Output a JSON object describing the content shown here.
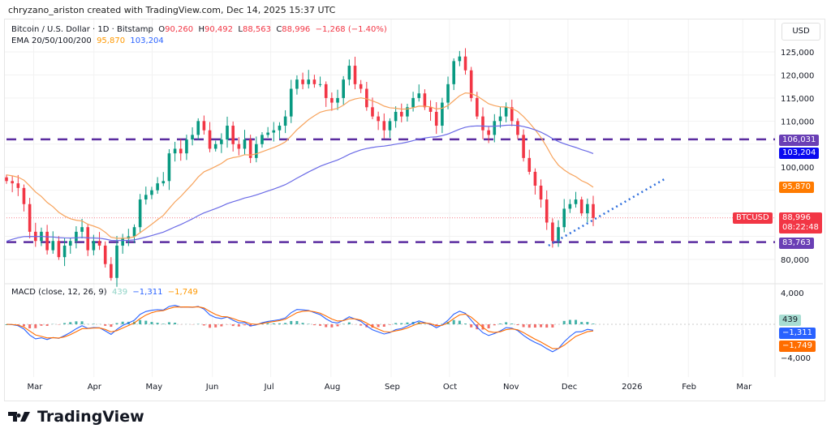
{
  "header": {
    "credit": "chryzano_ariston created with TradingView.com, Dec 14, 2025 15:37 UTC"
  },
  "legend": {
    "symbol": "Bitcoin / U.S. Dollar · 1D · Bitstamp",
    "o_label": "O",
    "o": "90,260",
    "h_label": "H",
    "h": "90,492",
    "l_label": "L",
    "l": "88,563",
    "c_label": "C",
    "c": "88,996",
    "change": "−1,268 (−1.40%)",
    "ema_label": "EMA 20/50/100/200",
    "ema1": "95,870",
    "ema2": "103,204"
  },
  "currency": "USD",
  "price_labels": {
    "res": "106,031",
    "ema200": "103,204",
    "ema50": "95,870",
    "symbol": "BTCUSD",
    "last": "88,996",
    "countdown": "08:22:48",
    "sup": "83,763"
  },
  "macd": {
    "label": "MACD (close, 12, 26, 9)",
    "hist": "439",
    "macd": "−1,311",
    "signal": "−1,749",
    "tick_top": "4,000",
    "tick_bottom": "−4,000"
  },
  "footer": {
    "brand": "TradingView"
  },
  "colors": {
    "up": "#089981",
    "down": "#f23645",
    "ema50": "#f7a35c",
    "ema200": "#6a6ae6",
    "levels": "#5b2ca0",
    "trend": "#2f6fdd"
  },
  "chart_data": {
    "type": "candlestick",
    "title": "Bitcoin / U.S. Dollar · 1D · Bitstamp",
    "x_start": "2025-02-15",
    "x_end": "2025-12-14",
    "closes": [
      97000,
      96500,
      95500,
      92000,
      86000,
      84000,
      86000,
      82000,
      84000,
      80500,
      83000,
      84000,
      86000,
      87000,
      82000,
      84000,
      83000,
      79000,
      76000,
      83000,
      84500,
      85000,
      87000,
      93000,
      94000,
      95000,
      96500,
      97000,
      103000,
      104000,
      103000,
      106000,
      107000,
      110000,
      108000,
      104000,
      105000,
      106000,
      109000,
      105000,
      104000,
      106000,
      102000,
      105000,
      107000,
      107500,
      108000,
      109000,
      111000,
      117000,
      119000,
      118000,
      119000,
      118000,
      118000,
      115000,
      114000,
      115000,
      119000,
      122000,
      118000,
      117000,
      113000,
      111000,
      110000,
      108000,
      110000,
      112000,
      111000,
      113000,
      115000,
      116000,
      113000,
      112000,
      109000,
      114000,
      118000,
      123000,
      124000,
      121000,
      115000,
      111000,
      108000,
      107000,
      110000,
      111000,
      113000,
      110000,
      107000,
      102000,
      99000,
      96000,
      93000,
      88000,
      84000,
      87000,
      91000,
      92000,
      93000,
      90000,
      92000,
      88996
    ],
    "y_ticks": [
      80000,
      85000,
      90000,
      95000,
      100000,
      105000,
      110000,
      115000,
      120000,
      125000
    ],
    "y_range": [
      76000,
      126500
    ],
    "x_ticks": [
      "Mar",
      "Apr",
      "May",
      "Jun",
      "Jul",
      "Aug",
      "Sep",
      "Oct",
      "Nov",
      "Dec",
      "2026",
      "Feb",
      "Mar"
    ],
    "levels": [
      106031,
      83763
    ],
    "trendline": [
      {
        "date": "2025-11-21",
        "price": 83000
      },
      {
        "date": "2026-01-20",
        "price": 97500
      }
    ],
    "ema": [
      {
        "name": "EMA 50",
        "last": 95870
      },
      {
        "name": "EMA 200",
        "last": 103204
      }
    ],
    "macd_range": [
      -5000,
      5000
    ]
  }
}
